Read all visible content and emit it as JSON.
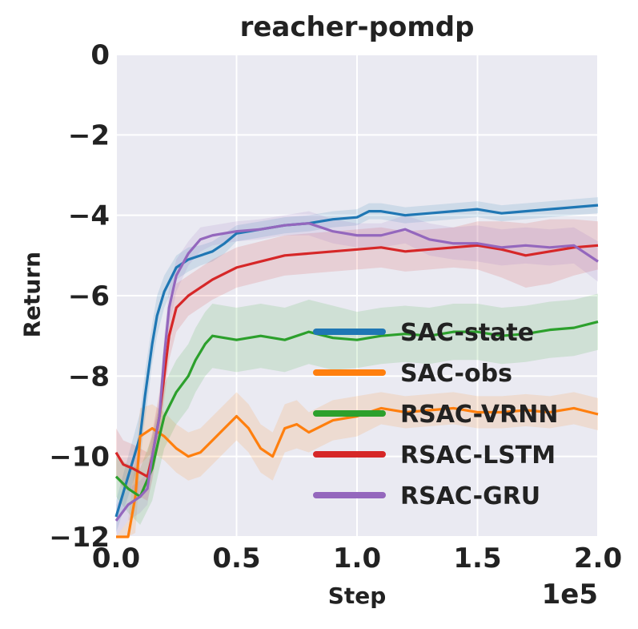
{
  "chart_data": {
    "type": "line",
    "title": "reacher-pomdp",
    "xlabel": "Step",
    "ylabel": "Return",
    "x_multiplier_label": "1e5",
    "xlim": [
      0,
      2.0
    ],
    "ylim": [
      -12,
      0
    ],
    "xticks": [
      "0.0",
      "0.5",
      "1.0",
      "1.5",
      "2.0"
    ],
    "yticks": [
      "0",
      "−2",
      "−4",
      "−6",
      "−8",
      "−10",
      "−12"
    ],
    "ytick_values": [
      0,
      -2,
      -4,
      -6,
      -8,
      -10,
      -12
    ],
    "xtick_values": [
      0,
      0.5,
      1.0,
      1.5,
      2.0
    ],
    "grid": true,
    "legend_position": "lower-right",
    "series": [
      {
        "name": "SAC-state",
        "color": "#1f77b4",
        "x": [
          0.0,
          0.05,
          0.1,
          0.12,
          0.15,
          0.17,
          0.2,
          0.25,
          0.3,
          0.35,
          0.4,
          0.45,
          0.5,
          0.6,
          0.7,
          0.8,
          0.9,
          1.0,
          1.05,
          1.1,
          1.2,
          1.3,
          1.4,
          1.5,
          1.6,
          1.7,
          1.8,
          1.9,
          2.0
        ],
        "y": [
          -11.5,
          -10.5,
          -9.5,
          -8.5,
          -7.2,
          -6.5,
          -5.9,
          -5.3,
          -5.1,
          -5.0,
          -4.9,
          -4.7,
          -4.45,
          -4.35,
          -4.25,
          -4.2,
          -4.1,
          -4.05,
          -3.9,
          -3.9,
          -4.0,
          -3.95,
          -3.9,
          -3.85,
          -3.95,
          -3.9,
          -3.85,
          -3.8,
          -3.75
        ],
        "band": [
          0.4,
          0.5,
          0.6,
          0.6,
          0.5,
          0.5,
          0.4,
          0.3,
          0.3,
          0.25,
          0.25,
          0.25,
          0.2,
          0.2,
          0.2,
          0.2,
          0.2,
          0.2,
          0.2,
          0.2,
          0.2,
          0.2,
          0.2,
          0.2,
          0.2,
          0.2,
          0.2,
          0.2,
          0.2
        ]
      },
      {
        "name": "SAC-obs",
        "color": "#ff7f0e",
        "x": [
          0.0,
          0.05,
          0.08,
          0.1,
          0.15,
          0.2,
          0.25,
          0.3,
          0.35,
          0.4,
          0.45,
          0.5,
          0.55,
          0.6,
          0.65,
          0.7,
          0.75,
          0.8,
          0.9,
          1.0,
          1.1,
          1.2,
          1.3,
          1.4,
          1.5,
          1.6,
          1.7,
          1.8,
          1.9,
          2.0
        ],
        "y": [
          -13.0,
          -12.5,
          -11.0,
          -9.5,
          -9.3,
          -9.5,
          -9.8,
          -10.0,
          -9.9,
          -9.6,
          -9.3,
          -9.0,
          -9.3,
          -9.8,
          -10.0,
          -9.3,
          -9.2,
          -9.4,
          -9.1,
          -9.0,
          -8.8,
          -8.9,
          -8.85,
          -8.8,
          -8.9,
          -8.9,
          -8.85,
          -8.9,
          -8.8,
          -8.95
        ],
        "band": [
          0.8,
          0.9,
          0.9,
          0.7,
          0.6,
          0.6,
          0.6,
          0.6,
          0.6,
          0.6,
          0.6,
          0.6,
          0.6,
          0.6,
          0.6,
          0.6,
          0.6,
          0.5,
          0.5,
          0.5,
          0.4,
          0.4,
          0.4,
          0.4,
          0.4,
          0.4,
          0.4,
          0.4,
          0.4,
          0.4
        ]
      },
      {
        "name": "RSAC-VRNN",
        "color": "#2ca02c",
        "x": [
          0.0,
          0.05,
          0.1,
          0.15,
          0.18,
          0.2,
          0.25,
          0.3,
          0.33,
          0.37,
          0.4,
          0.45,
          0.5,
          0.6,
          0.7,
          0.8,
          0.9,
          1.0,
          1.1,
          1.2,
          1.3,
          1.4,
          1.5,
          1.6,
          1.7,
          1.8,
          1.9,
          2.0
        ],
        "y": [
          -10.5,
          -10.8,
          -11.0,
          -10.3,
          -9.5,
          -9.0,
          -8.4,
          -8.0,
          -7.6,
          -7.2,
          -7.0,
          -7.05,
          -7.1,
          -7.0,
          -7.1,
          -6.9,
          -7.05,
          -7.1,
          -7.0,
          -6.95,
          -7.0,
          -6.9,
          -6.9,
          -7.0,
          -6.95,
          -6.85,
          -6.8,
          -6.65
        ],
        "band": [
          0.5,
          0.6,
          0.7,
          0.8,
          0.8,
          0.8,
          0.8,
          0.8,
          0.8,
          0.8,
          0.8,
          0.8,
          0.8,
          0.8,
          0.8,
          0.8,
          0.8,
          0.7,
          0.7,
          0.7,
          0.7,
          0.7,
          0.7,
          0.7,
          0.7,
          0.7,
          0.7,
          0.7
        ]
      },
      {
        "name": "RSAC-LSTM",
        "color": "#d62728",
        "x": [
          0.0,
          0.03,
          0.07,
          0.1,
          0.13,
          0.15,
          0.18,
          0.2,
          0.22,
          0.25,
          0.3,
          0.35,
          0.4,
          0.5,
          0.6,
          0.7,
          0.8,
          0.9,
          1.0,
          1.1,
          1.2,
          1.3,
          1.4,
          1.5,
          1.6,
          1.7,
          1.8,
          1.9,
          2.0
        ],
        "y": [
          -9.9,
          -10.2,
          -10.3,
          -10.4,
          -10.5,
          -10.0,
          -9.0,
          -8.0,
          -7.0,
          -6.3,
          -6.0,
          -5.8,
          -5.6,
          -5.3,
          -5.15,
          -5.0,
          -4.95,
          -4.9,
          -4.85,
          -4.8,
          -4.9,
          -4.85,
          -4.8,
          -4.75,
          -4.85,
          -5.0,
          -4.9,
          -4.8,
          -4.75
        ],
        "band": [
          0.6,
          0.6,
          0.6,
          0.6,
          0.6,
          0.6,
          0.6,
          0.6,
          0.6,
          0.6,
          0.5,
          0.5,
          0.5,
          0.5,
          0.5,
          0.5,
          0.5,
          0.5,
          0.5,
          0.5,
          0.5,
          0.5,
          0.5,
          0.6,
          0.7,
          0.8,
          0.8,
          0.7,
          0.6
        ]
      },
      {
        "name": "RSAC-GRU",
        "color": "#9467bd",
        "x": [
          0.0,
          0.05,
          0.1,
          0.13,
          0.15,
          0.18,
          0.2,
          0.22,
          0.25,
          0.3,
          0.35,
          0.4,
          0.5,
          0.6,
          0.7,
          0.8,
          0.9,
          1.0,
          1.1,
          1.2,
          1.3,
          1.4,
          1.5,
          1.6,
          1.7,
          1.8,
          1.9,
          2.0
        ],
        "y": [
          -11.6,
          -11.2,
          -11.0,
          -10.8,
          -10.0,
          -9.0,
          -7.5,
          -6.3,
          -5.5,
          -4.95,
          -4.6,
          -4.5,
          -4.4,
          -4.35,
          -4.25,
          -4.2,
          -4.4,
          -4.5,
          -4.5,
          -4.35,
          -4.6,
          -4.7,
          -4.7,
          -4.8,
          -4.75,
          -4.8,
          -4.75,
          -5.15
        ],
        "band": [
          0.4,
          0.4,
          0.4,
          0.4,
          0.5,
          0.5,
          0.5,
          0.5,
          0.4,
          0.3,
          0.3,
          0.25,
          0.25,
          0.25,
          0.25,
          0.3,
          0.3,
          0.3,
          0.3,
          0.35,
          0.4,
          0.4,
          0.45,
          0.45,
          0.45,
          0.45,
          0.45,
          0.5
        ]
      }
    ]
  }
}
